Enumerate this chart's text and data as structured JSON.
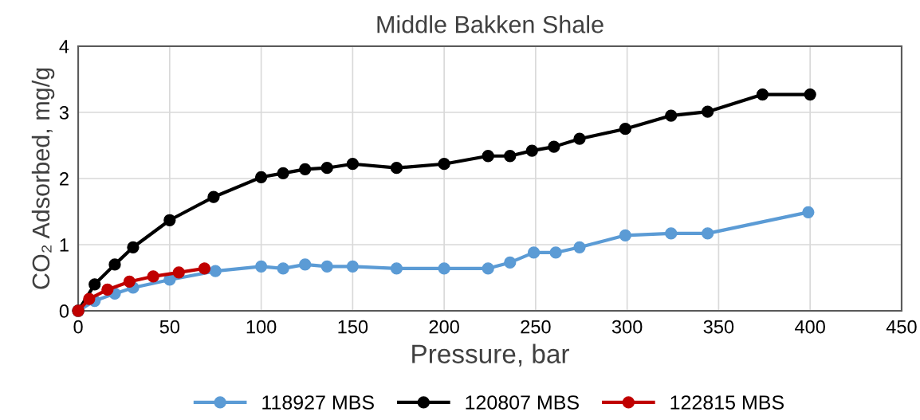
{
  "chart_data": {
    "type": "line",
    "title": "Middle Bakken Shale",
    "xlabel": "Pressure, bar",
    "ylabel": "CO₂ Adsorbed, mg/g",
    "xlim": [
      0,
      450
    ],
    "xticks": [
      0,
      50,
      100,
      150,
      200,
      250,
      300,
      350,
      400,
      450
    ],
    "ylim": [
      0,
      4
    ],
    "yticks": [
      0,
      1,
      2,
      3,
      4
    ],
    "grid": true,
    "legend": "bottom",
    "marker": "circle",
    "line_style": "solid",
    "series": [
      {
        "name": "118927 MBS",
        "color": "#5b9bd5",
        "x": [
          0,
          9,
          20,
          30,
          50,
          75,
          100,
          112,
          124,
          136,
          150,
          174,
          200,
          224,
          236,
          249,
          261,
          274,
          299,
          324,
          344,
          399
        ],
        "values": [
          0,
          0.15,
          0.26,
          0.35,
          0.47,
          0.6,
          0.67,
          0.64,
          0.7,
          0.67,
          0.67,
          0.64,
          0.64,
          0.64,
          0.73,
          0.88,
          0.88,
          0.96,
          1.14,
          1.17,
          1.17,
          1.49
        ]
      },
      {
        "name": "120807 MBS",
        "color": "#000000",
        "x": [
          0,
          9,
          20,
          30,
          50,
          74,
          100,
          112,
          124,
          136,
          150,
          174,
          200,
          224,
          236,
          248,
          260,
          274,
          299,
          324,
          344,
          374,
          400
        ],
        "values": [
          0,
          0.4,
          0.7,
          0.96,
          1.37,
          1.72,
          2.02,
          2.08,
          2.14,
          2.16,
          2.22,
          2.16,
          2.22,
          2.34,
          2.34,
          2.42,
          2.48,
          2.6,
          2.75,
          2.95,
          3.01,
          3.27,
          3.27
        ]
      },
      {
        "name": "122815 MBS",
        "color": "#c00000",
        "x": [
          0,
          6,
          16,
          28,
          41,
          55,
          69
        ],
        "values": [
          0,
          0.18,
          0.32,
          0.44,
          0.52,
          0.58,
          0.64
        ]
      }
    ]
  }
}
